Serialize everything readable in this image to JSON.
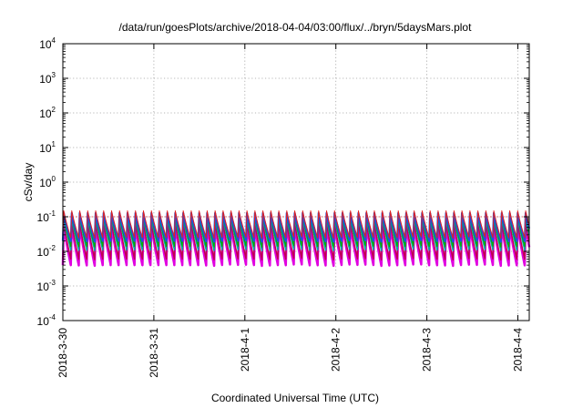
{
  "chart_data": {
    "type": "line",
    "title": "/data/run/goesPlots/archive/2018-04-04/03:00/flux/../bryn/5daysMars.plot",
    "xlabel": "Coordinated Universal Time (UTC)",
    "ylabel": "cSv/day",
    "y_scale": "log",
    "ylim": [
      0.0001,
      10000
    ],
    "y_ticks": [
      {
        "base": "10",
        "exp": "-4",
        "value": 0.0001
      },
      {
        "base": "10",
        "exp": "-3",
        "value": 0.001
      },
      {
        "base": "10",
        "exp": "-2",
        "value": 0.01
      },
      {
        "base": "10",
        "exp": "-1",
        "value": 0.1
      },
      {
        "base": "10",
        "exp": "0",
        "value": 1
      },
      {
        "base": "10",
        "exp": "1",
        "value": 10
      },
      {
        "base": "10",
        "exp": "2",
        "value": 100
      },
      {
        "base": "10",
        "exp": "3",
        "value": 1000
      },
      {
        "base": "10",
        "exp": "4",
        "value": 10000
      }
    ],
    "x_start": "2018-03-30",
    "x_end": "2018-04-04T03:00",
    "x_ticks": [
      "2018-3-30",
      "2018-3-31",
      "2018-4-1",
      "2018-4-2",
      "2018-4-3",
      "2018-4-4"
    ],
    "grid": true,
    "reference_line": {
      "value": 0.1,
      "color": "#e03030",
      "style": "dotted"
    },
    "cycle_hours": 2.1,
    "series": [
      {
        "color": "#e000e0",
        "peak": 0.06,
        "trough": 0.004,
        "width": 2.5
      },
      {
        "color": "#c00050",
        "peak": 0.07,
        "trough": 0.006,
        "width": 1.5
      },
      {
        "color": "#00a8a8",
        "peak": 0.1,
        "trough": 0.011,
        "width": 1.5
      },
      {
        "color": "#00b000",
        "peak": 0.11,
        "trough": 0.014,
        "width": 1.2
      },
      {
        "color": "#2050e0",
        "peak": 0.13,
        "trough": 0.02,
        "width": 2.2
      },
      {
        "color": "#e02020",
        "peak": 0.15,
        "trough": 0.025,
        "width": 1.0
      }
    ]
  }
}
